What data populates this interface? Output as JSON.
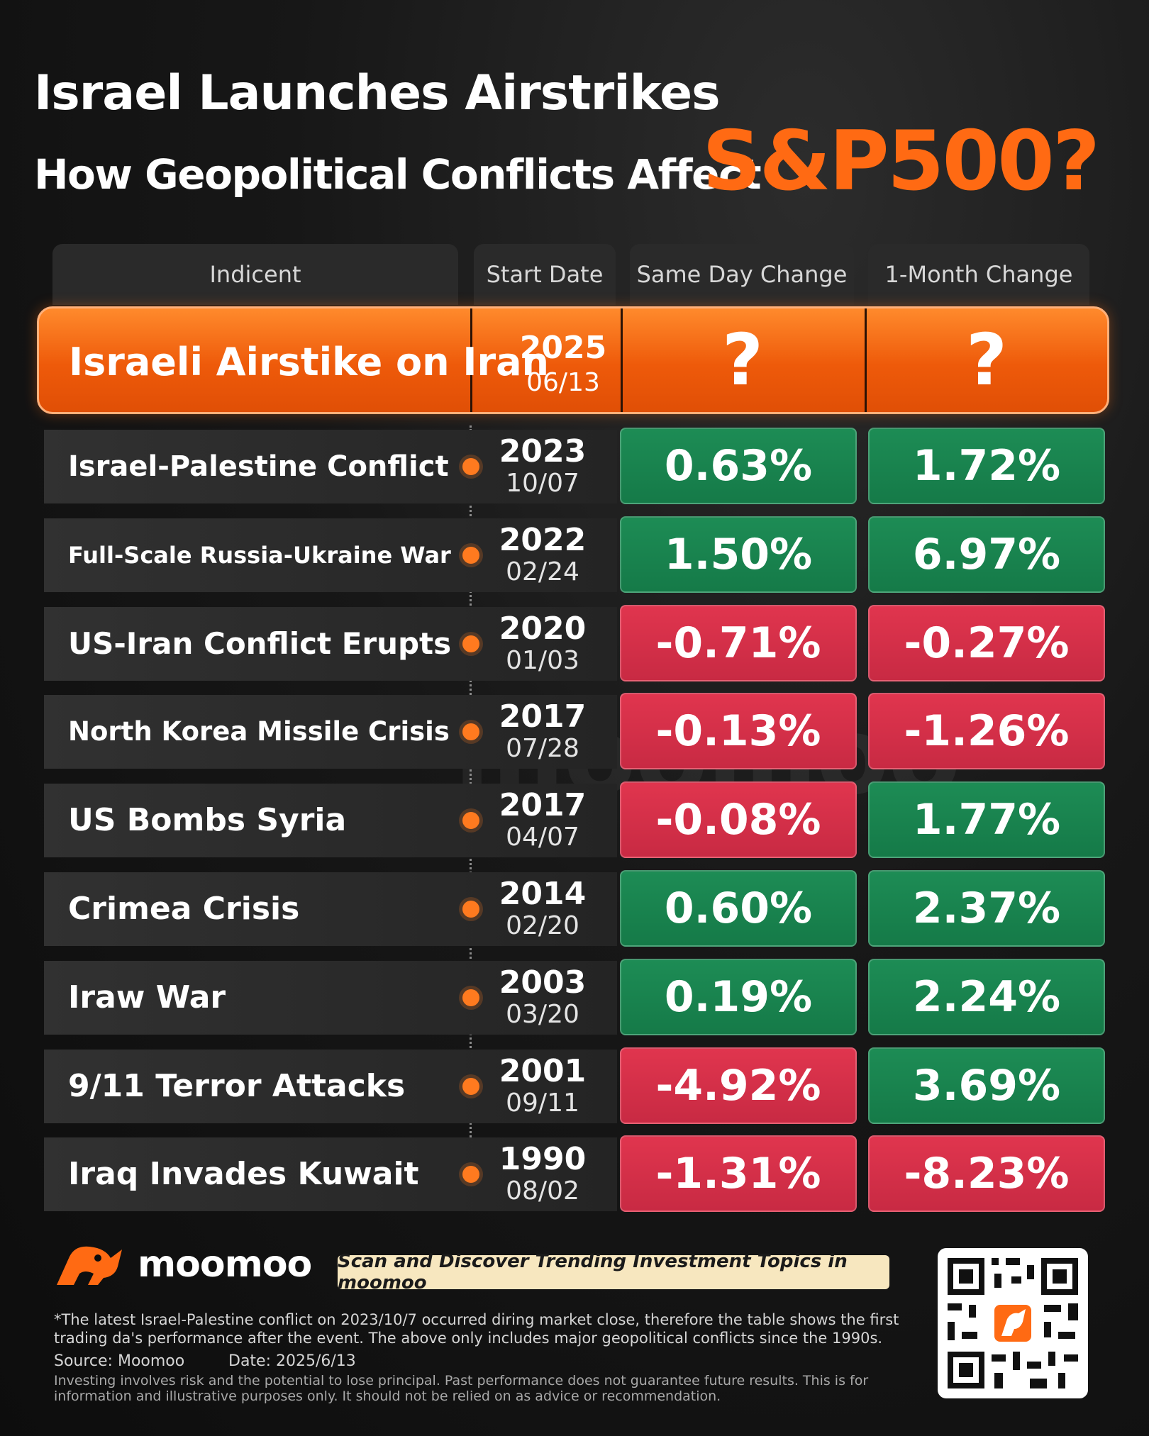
{
  "title": {
    "line1": "Israel Launches Airstrikes",
    "line2": "How Geopolitical Conflicts Affect",
    "accent": "S&P500?"
  },
  "table": {
    "headers": [
      "Indicent",
      "Start Date",
      "Same Day Change",
      "1-Month Change"
    ],
    "highlight": {
      "incident": "Israeli Airstike on Iran",
      "year": "2025",
      "month_day": "06/13",
      "same_day": "?",
      "one_month": "?"
    },
    "rows": [
      {
        "incident": "Israel-Palestine Conflict",
        "year": "2023",
        "month_day": "10/07",
        "same_day": "0.63%",
        "one_month": "1.72%"
      },
      {
        "incident": "Full-Scale Russia-Ukraine War",
        "year": "2022",
        "month_day": "02/24",
        "same_day": "1.50%",
        "one_month": "6.97%"
      },
      {
        "incident": "US-Iran Conflict Erupts",
        "year": "2020",
        "month_day": "01/03",
        "same_day": "-0.71%",
        "one_month": "-0.27%"
      },
      {
        "incident": "North Korea Missile Crisis",
        "year": "2017",
        "month_day": "07/28",
        "same_day": "-0.13%",
        "one_month": "-1.26%"
      },
      {
        "incident": "US Bombs Syria",
        "year": "2017",
        "month_day": "04/07",
        "same_day": "-0.08%",
        "one_month": "1.77%"
      },
      {
        "incident": "Crimea Crisis",
        "year": "2014",
        "month_day": "02/20",
        "same_day": "0.60%",
        "one_month": "2.37%"
      },
      {
        "incident": "Iraw War",
        "year": "2003",
        "month_day": "03/20",
        "same_day": "0.19%",
        "one_month": "2.24%"
      },
      {
        "incident": "9/11 Terror Attacks",
        "year": "2001",
        "month_day": "09/11",
        "same_day": "-4.92%",
        "one_month": "3.69%"
      },
      {
        "incident": "Iraq Invades Kuwait",
        "year": "1990",
        "month_day": "08/02",
        "same_day": "-1.31%",
        "one_month": "-8.23%"
      }
    ]
  },
  "watermark": "moomoo",
  "footer": {
    "brand": "moomoo",
    "banner": "Scan and Discover Trending Investment Topics in moomoo",
    "note": "*The latest Israel-Palestine conflict on 2023/10/7 occurred diring market close, therefore the table shows the first trading da's performance after the event. The above only includes major geopolitical conflicts since the 1990s.",
    "source": "Source: Moomoo",
    "date": "Date: 2025/6/13",
    "disclaimer": "Investing involves risk and the potential to lose principal. Past performance does not guarantee future results. This is for information and illustrative purposes only. It should not be relied on as advice or recommendation."
  },
  "colors": {
    "accent": "#ff6a13",
    "positive": "#1b8a53",
    "negative": "#d6304a",
    "header_bg": "#2a2a2a"
  },
  "icons": {
    "logo": "moomoo-bull-icon",
    "timeline_marker": "orange-dot-icon",
    "qr": "qr-code-icon"
  }
}
